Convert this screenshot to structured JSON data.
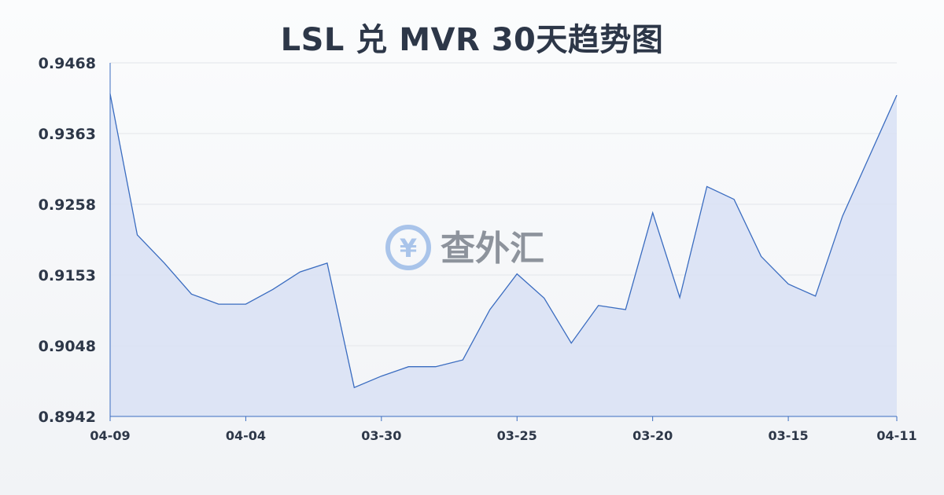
{
  "chart_data": {
    "type": "area",
    "title": "LSL 兑 MVR 30天趋势图",
    "watermark": "查外汇",
    "x_tick_labels": [
      "04-09",
      "04-04",
      "03-30",
      "03-25",
      "03-20",
      "03-15",
      "04-11"
    ],
    "y_tick_labels": [
      "0.9468",
      "0.9363",
      "0.9258",
      "0.9153",
      "0.9048",
      "0.8942"
    ],
    "ylim": [
      0.8942,
      0.9468
    ],
    "grid": true,
    "line_color": "#3a6cc0",
    "fill_color": "#d8e1f5",
    "values": [
      0.9422,
      0.9212,
      0.917,
      0.9124,
      0.9109,
      0.9109,
      0.9131,
      0.9157,
      0.917,
      0.8985,
      0.9002,
      0.9016,
      0.9016,
      0.9026,
      0.9101,
      0.9154,
      0.9118,
      0.9051,
      0.9107,
      0.9101,
      0.9245,
      0.9119,
      0.9284,
      0.9265,
      0.918,
      0.9139,
      0.9121,
      0.924,
      0.933,
      0.942
    ]
  }
}
